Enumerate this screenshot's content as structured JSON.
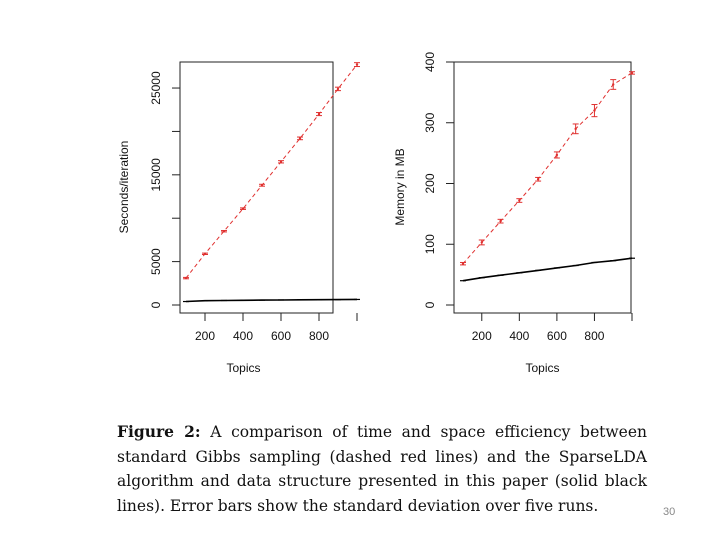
{
  "chart_data": [
    {
      "type": "line",
      "title": "",
      "xlabel": "Topics",
      "ylabel": "Seconds/iteration",
      "xlim": [
        100,
        1000
      ],
      "ylim": [
        0,
        28000
      ],
      "x_ticks": [
        "200",
        "400",
        "600",
        "800"
      ],
      "y_ticks": [
        "0",
        "5000",
        "15000",
        "25000"
      ],
      "x": [
        100,
        200,
        300,
        400,
        500,
        600,
        700,
        800,
        900,
        1000
      ],
      "series": [
        {
          "style": "red dashed with error bars",
          "color": "#e0302f",
          "values": [
            3100,
            5900,
            8500,
            11100,
            13800,
            16500,
            19200,
            22000,
            24900,
            27700
          ]
        },
        {
          "style": "black solid",
          "color": "#000000",
          "values": [
            400,
            500,
            520,
            540,
            560,
            580,
            600,
            610,
            620,
            640
          ]
        }
      ]
    },
    {
      "type": "line",
      "title": "",
      "xlabel": "Topics",
      "ylabel": "Memory in MB",
      "xlim": [
        100,
        1000
      ],
      "ylim": [
        0,
        400
      ],
      "x_ticks": [
        "200",
        "400",
        "600",
        "800"
      ],
      "y_ticks": [
        "0",
        "100",
        "200",
        "300",
        "400"
      ],
      "x": [
        100,
        200,
        300,
        400,
        500,
        600,
        700,
        800,
        900,
        1000
      ],
      "series": [
        {
          "style": "red dashed with error bars",
          "color": "#e0302f",
          "values": [
            68,
            103,
            138,
            172,
            207,
            247,
            290,
            320,
            363,
            382
          ],
          "error": [
            2,
            4,
            3,
            3,
            3,
            5,
            8,
            10,
            8,
            2
          ]
        },
        {
          "style": "black solid",
          "color": "#000000",
          "values": [
            40,
            45,
            49,
            53,
            57,
            61,
            65,
            70,
            73,
            77
          ]
        }
      ]
    }
  ],
  "caption": {
    "label": "Figure 2:",
    "text": "A comparison of time and space efficiency between standard Gibbs sampling (dashed red lines) and the SparseLDA algorithm and data structure presented in this paper (solid black lines). Error bars show the standard deviation over five runs."
  },
  "page_number": "30"
}
